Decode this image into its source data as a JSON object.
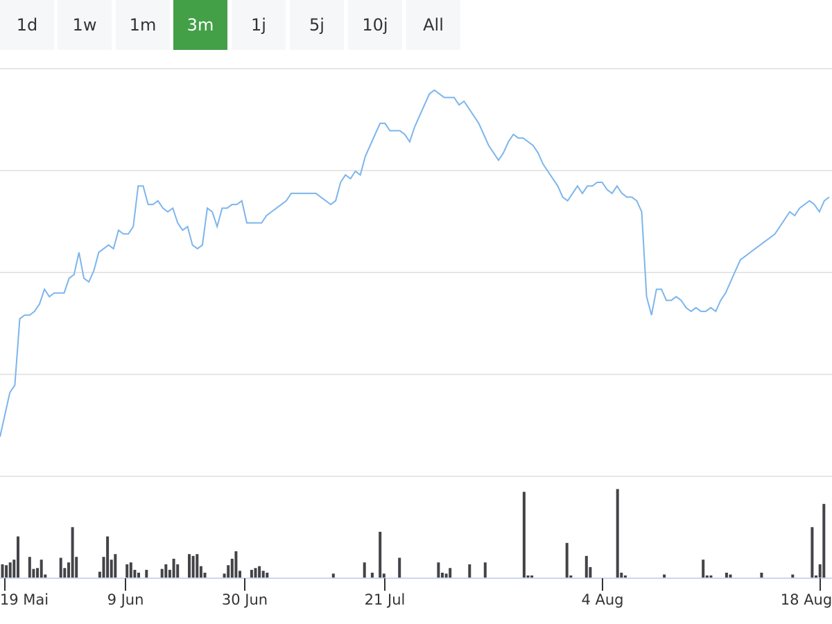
{
  "range_selector": {
    "buttons": [
      {
        "label": "1d",
        "selected": false
      },
      {
        "label": "1w",
        "selected": false
      },
      {
        "label": "1m",
        "selected": false
      },
      {
        "label": "3m",
        "selected": true
      },
      {
        "label": "1j",
        "selected": false
      },
      {
        "label": "5j",
        "selected": false
      },
      {
        "label": "10j",
        "selected": false
      },
      {
        "label": "All",
        "selected": false
      }
    ],
    "active_color": "#43a047"
  },
  "chart_data": {
    "type": "line",
    "title": "",
    "xlabel": "",
    "ylabel": "",
    "grid": true,
    "x_ticks": [
      "19 Mai",
      "9 Jun",
      "30 Jun",
      "21 Jul",
      "4 Aug",
      "18 Aug"
    ],
    "y_range": [
      0,
      4
    ],
    "price_series": {
      "color": "#7cb5ec",
      "values": [
        0.45,
        0.75,
        1.05,
        1.15,
        2.05,
        2.1,
        2.1,
        2.15,
        2.25,
        2.45,
        2.35,
        2.4,
        2.4,
        2.4,
        2.6,
        2.65,
        2.95,
        2.6,
        2.55,
        2.7,
        2.95,
        3.0,
        3.05,
        3.0,
        3.25,
        3.2,
        3.2,
        3.3,
        3.85,
        3.85,
        3.6,
        3.6,
        3.65,
        3.55,
        3.5,
        3.55,
        3.35,
        3.25,
        3.3,
        3.05,
        3.0,
        3.05,
        3.55,
        3.5,
        3.3,
        3.55,
        3.55,
        3.6,
        3.6,
        3.65,
        3.35,
        3.35,
        3.35,
        3.35,
        3.45,
        3.5,
        3.55,
        3.6,
        3.65,
        3.75,
        3.75,
        3.75,
        3.75,
        3.75,
        3.75,
        3.7,
        3.65,
        3.6,
        3.65,
        3.9,
        4.0,
        3.95,
        4.05,
        4.0,
        4.25,
        4.4,
        4.55,
        4.7,
        4.7,
        4.6,
        4.6,
        4.6,
        4.55,
        4.45,
        4.65,
        4.8,
        4.95,
        5.1,
        5.15,
        5.1,
        5.05,
        5.05,
        5.05,
        4.95,
        5.0,
        4.9,
        4.8,
        4.7,
        4.55,
        4.4,
        4.3,
        4.2,
        4.3,
        4.45,
        4.55,
        4.5,
        4.5,
        4.45,
        4.4,
        4.3,
        4.15,
        4.05,
        3.95,
        3.85,
        3.7,
        3.65,
        3.75,
        3.85,
        3.75,
        3.85,
        3.85,
        3.9,
        3.9,
        3.8,
        3.75,
        3.85,
        3.75,
        3.7,
        3.7,
        3.65,
        3.5,
        2.35,
        2.1,
        2.45,
        2.45,
        2.3,
        2.3,
        2.35,
        2.3,
        2.2,
        2.15,
        2.2,
        2.15,
        2.15,
        2.2,
        2.15,
        2.3,
        2.4,
        2.55,
        2.7,
        2.85,
        2.9,
        2.95,
        3.0,
        3.05,
        3.1,
        3.15,
        3.2,
        3.3,
        3.4,
        3.5,
        3.45,
        3.55,
        3.6,
        3.65,
        3.6,
        3.5,
        3.65,
        3.7
      ]
    },
    "volume_series": {
      "color": "#434348",
      "values": [
        0.15,
        0.14,
        0.17,
        0.2,
        0.45,
        0,
        0,
        0.23,
        0.1,
        0.11,
        0.2,
        0.04,
        0,
        0,
        0,
        0.22,
        0.11,
        0.17,
        0.55,
        0.23,
        0,
        0,
        0,
        0,
        0,
        0.07,
        0.23,
        0.45,
        0.2,
        0.26,
        0,
        0,
        0.15,
        0.17,
        0.09,
        0.06,
        0,
        0.09,
        0,
        0,
        0,
        0.1,
        0.15,
        0.09,
        0.21,
        0.15,
        0,
        0,
        0.26,
        0.24,
        0.26,
        0.13,
        0.06,
        0,
        0,
        0,
        0,
        0.05,
        0.14,
        0.21,
        0.29,
        0.08,
        0,
        0,
        0.09,
        0.11,
        0.13,
        0.08,
        0.06,
        0,
        0,
        0,
        0,
        0,
        0,
        0,
        0,
        0,
        0,
        0,
        0,
        0,
        0,
        0,
        0,
        0.05,
        0,
        0,
        0,
        0,
        0,
        0,
        0,
        0.17,
        0,
        0.06,
        0,
        0.5,
        0.05,
        0,
        0,
        0,
        0.22,
        0,
        0,
        0,
        0,
        0,
        0,
        0,
        0,
        0,
        0.17,
        0.06,
        0.05,
        0.11,
        0,
        0,
        0,
        0,
        0.15,
        0,
        0,
        0,
        0.17,
        0,
        0,
        0,
        0,
        0,
        0,
        0,
        0,
        0,
        0.93,
        0.03,
        0.03,
        0,
        0,
        0,
        0,
        0,
        0,
        0,
        0,
        0.38,
        0.03,
        0,
        0,
        0,
        0.24,
        0.12,
        0,
        0,
        0,
        0,
        0,
        0,
        0.96,
        0.06,
        0.03,
        0,
        0,
        0,
        0,
        0,
        0,
        0,
        0,
        0,
        0.04,
        0,
        0,
        0,
        0,
        0,
        0,
        0,
        0,
        0,
        0.2,
        0.03,
        0.03,
        0,
        0,
        0,
        0.06,
        0.04,
        0,
        0,
        0,
        0,
        0,
        0,
        0,
        0.06,
        0,
        0,
        0,
        0,
        0,
        0,
        0,
        0.04,
        0,
        0,
        0,
        0,
        0.55,
        0.03,
        0.15,
        0.8,
        0
      ]
    }
  }
}
